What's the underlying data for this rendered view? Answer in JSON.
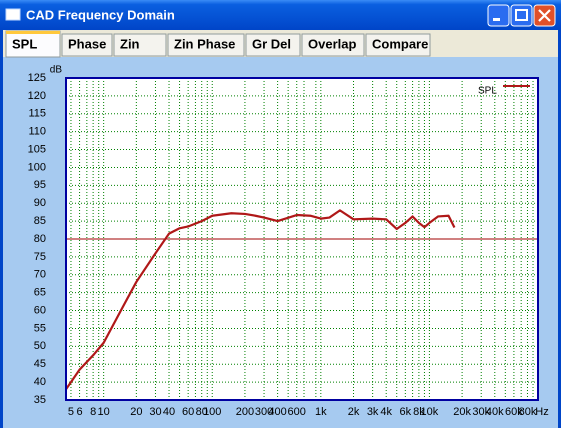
{
  "window": {
    "title": "CAD Frequency Domain"
  },
  "tabs": [
    "SPL",
    "Phase",
    "Zin",
    "Zin Phase",
    "Gr Del",
    "Overlap",
    "Compare"
  ],
  "selected_tab": 0,
  "chart_data": {
    "type": "line",
    "y_label": "dB",
    "x_unit": "Hz",
    "log_x": true,
    "grid": true,
    "x": [
      4.5,
      5,
      6,
      8,
      10,
      15,
      20,
      30,
      40,
      50,
      60,
      80,
      100,
      150,
      200,
      250,
      300,
      400,
      600,
      800,
      1000,
      1200,
      1500,
      2000,
      3000,
      4000,
      5000,
      6000,
      7000,
      8000,
      9000,
      10000,
      12000,
      15000,
      17000
    ],
    "series": [
      {
        "name": "SPL",
        "color": "#b01818",
        "values": [
          38,
          40,
          43.5,
          47.5,
          51,
          61,
          68,
          76,
          81.5,
          83,
          83.5,
          85,
          86.5,
          87.2,
          87,
          86.5,
          86,
          85,
          86.7,
          86.5,
          85.7,
          86,
          88,
          85.5,
          85.7,
          85.5,
          82.8,
          84.5,
          86.3,
          84.5,
          83.3,
          84.5,
          86.3,
          86.5,
          83.2
        ]
      }
    ],
    "reference_line": {
      "value": 80,
      "color": "#a00000"
    },
    "xlim": [
      4.5,
      100000
    ],
    "ylim": [
      35,
      125
    ],
    "yticks": [
      35,
      40,
      45,
      50,
      55,
      60,
      65,
      70,
      75,
      80,
      85,
      90,
      95,
      100,
      105,
      110,
      115,
      120,
      125
    ],
    "xticks": [
      5,
      6,
      8,
      10,
      20,
      30,
      40,
      60,
      80,
      100,
      200,
      300,
      400,
      600,
      {
        "value": 1000,
        "label": "1k"
      },
      {
        "value": 2000,
        "label": "2k"
      },
      {
        "value": 3000,
        "label": "3k"
      },
      {
        "value": 4000,
        "label": "4k"
      },
      {
        "value": 6000,
        "label": "6k"
      },
      {
        "value": 8000,
        "label": "8k"
      },
      {
        "value": 10000,
        "label": "10k"
      },
      {
        "value": 20000,
        "label": "20k"
      },
      {
        "value": 30000,
        "label": "30k"
      },
      {
        "value": 40000,
        "label": "40k"
      },
      {
        "value": 60000,
        "label": "60k"
      },
      {
        "value": 80000,
        "label": "80k"
      }
    ],
    "xminor": [
      7,
      9,
      50,
      70,
      90,
      500,
      700,
      900,
      5000,
      7000,
      9000,
      50000,
      70000,
      90000
    ],
    "legend": "top-right",
    "plot_border_color": "#0000a0",
    "grid_color": "#008000"
  }
}
